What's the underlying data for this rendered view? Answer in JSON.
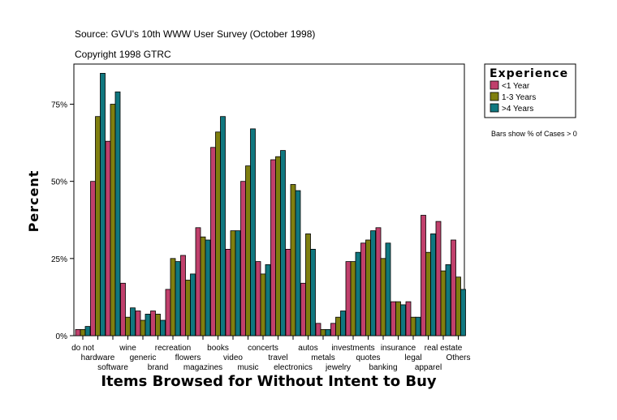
{
  "header": {
    "source": "Source: GVU's 10th WWW User Survey (October 1998)",
    "copyright": "Copyright 1998 GTRC"
  },
  "legend": {
    "title": "Experience",
    "note": "Bars show % of Cases > 0"
  },
  "colors": {
    "series_lt1": "#c0406c",
    "series_1to3": "#7f7f10",
    "series_gt4": "#10777f",
    "axis": "#000000",
    "background": "#ffffff"
  },
  "chart_data": {
    "type": "bar",
    "title": "",
    "xlabel": "Items Browsed for Without Intent to Buy",
    "ylabel": "Percent",
    "ylim": [
      0,
      88
    ],
    "yticks": [
      0,
      25,
      50,
      75
    ],
    "ytick_labels": [
      "0%",
      "25%",
      "50%",
      "75%"
    ],
    "grid": false,
    "legend_position": "top-right, outside plot",
    "categories": [
      "do not",
      "hardware",
      "software",
      "wine",
      "generic",
      "brand",
      "recreation",
      "flowers",
      "magazines",
      "books",
      "video",
      "music",
      "concerts",
      "travel",
      "electronics",
      "autos",
      "metals",
      "jewelry",
      "investments",
      "quotes",
      "banking",
      "insurance",
      "legal",
      "apparel",
      "real estate",
      "Others"
    ],
    "series": [
      {
        "name": "<1 Year",
        "color": "#c0406c",
        "values": [
          2,
          50,
          63,
          17,
          8,
          8,
          15,
          26,
          35,
          61,
          28,
          50,
          24,
          57,
          28,
          17,
          4,
          4,
          24,
          30,
          35,
          11,
          11,
          39,
          37,
          31
        ]
      },
      {
        "name": "1-3 Years",
        "color": "#7f7f10",
        "values": [
          2,
          71,
          75,
          6,
          5,
          7,
          25,
          18,
          32,
          66,
          34,
          55,
          20,
          58,
          49,
          33,
          2,
          6,
          24,
          31,
          25,
          11,
          6,
          27,
          21,
          19
        ]
      },
      {
        "name": ">4 Years",
        "color": "#10777f",
        "values": [
          3,
          85,
          79,
          9,
          7,
          5,
          24,
          20,
          31,
          71,
          34,
          67,
          23,
          60,
          47,
          28,
          2,
          8,
          27,
          34,
          30,
          10,
          6,
          33,
          23,
          15
        ]
      }
    ]
  }
}
